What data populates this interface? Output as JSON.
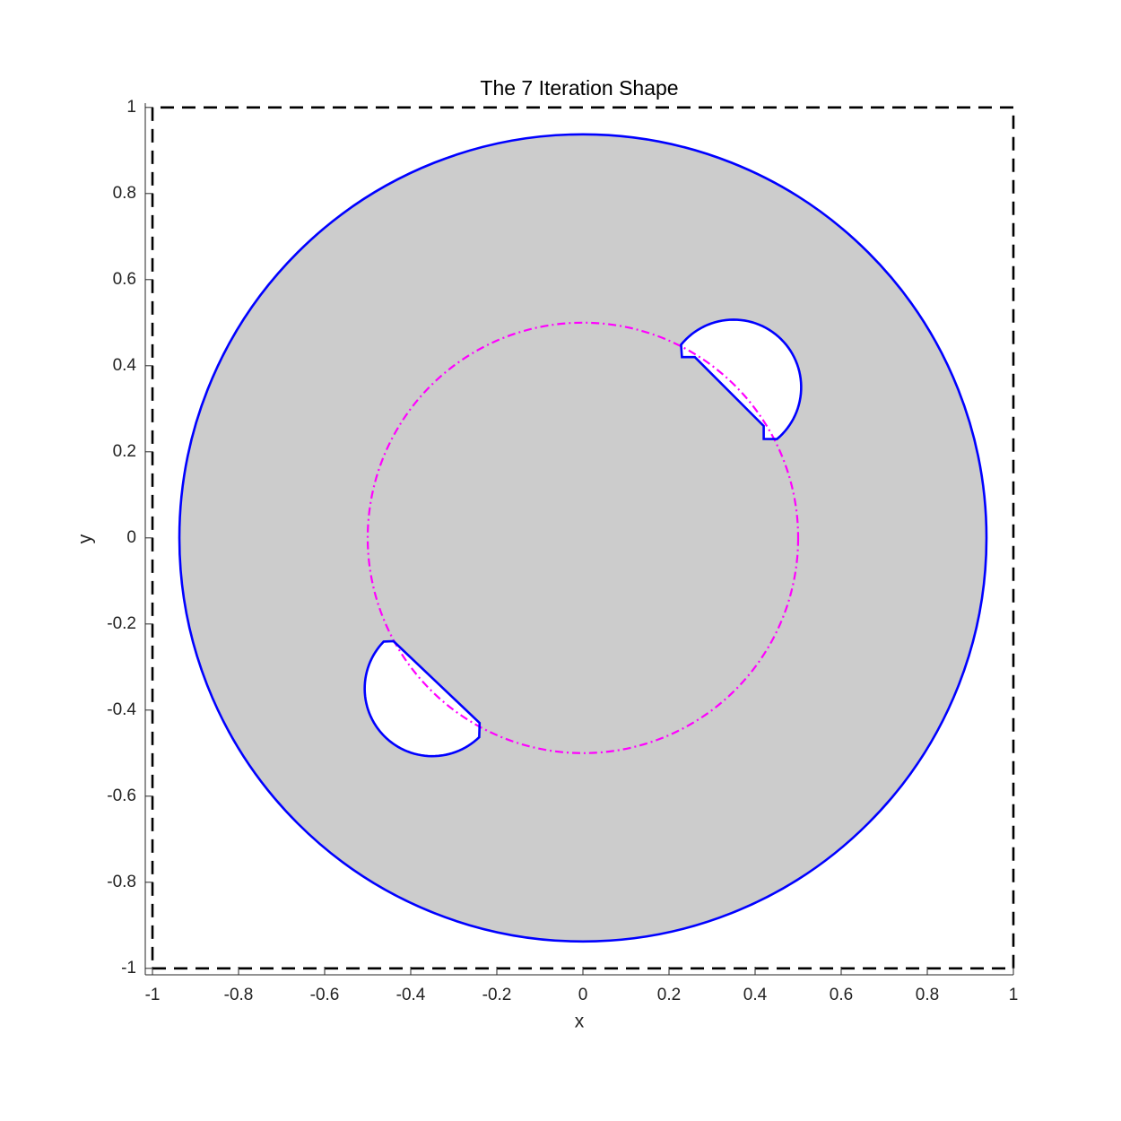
{
  "chart_data": {
    "type": "shape",
    "title": "The 7 Iteration Shape",
    "xlabel": "x",
    "ylabel": "y",
    "xlim": [
      -1.0167,
      1
    ],
    "ylim": [
      -1.015,
      1.01
    ],
    "xticks": [
      -1,
      -0.8,
      -0.6,
      -0.4,
      -0.2,
      0,
      0.2,
      0.4,
      0.6,
      0.8,
      1
    ],
    "yticks": [
      -1,
      -0.8,
      -0.6,
      -0.4,
      -0.2,
      0,
      0.2,
      0.4,
      0.6,
      0.8,
      1
    ],
    "fill_color": "#cccccc",
    "domain": {
      "x": [
        -1,
        1,
        1,
        -1,
        -1
      ],
      "y": [
        -1,
        -1,
        1,
        1,
        -1
      ],
      "color": "#000000"
    },
    "outer_circle": {
      "center": [
        0,
        0
      ],
      "radius": 0.9375,
      "color": "#0000ff"
    },
    "reference_circle": {
      "center": [
        0,
        0
      ],
      "radius": 0.5,
      "color": "#ff00ff"
    },
    "holes": [
      {
        "arc": {
          "center": [
            0.35,
            0.35
          ],
          "radius": 0.157,
          "start_angle": -50,
          "end_angle": 141
        },
        "x": [
          0.23,
          0.26,
          0.42,
          0.42
        ],
        "y": [
          0.42,
          0.42,
          0.26,
          0.23
        ]
      },
      {
        "arc": {
          "center": [
            -0.35,
            -0.35
          ],
          "radius": 0.157,
          "start_angle": -46,
          "end_angle": -224
        },
        "x": [
          -0.44,
          -0.24
        ],
        "y": [
          -0.24,
          -0.43
        ]
      }
    ]
  }
}
